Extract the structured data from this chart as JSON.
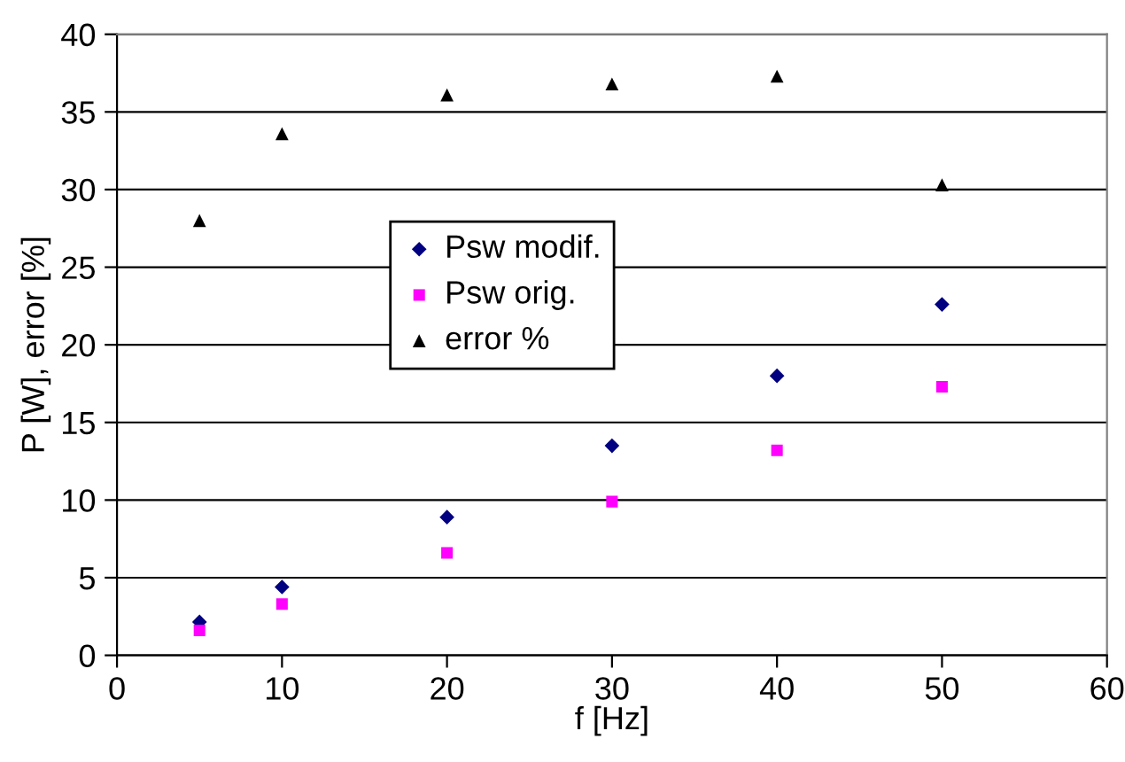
{
  "chart_data": {
    "type": "scatter",
    "xlabel": "f [Hz]",
    "ylabel": "P [W], error [%]",
    "x": [
      5,
      10,
      20,
      30,
      40,
      50
    ],
    "series": [
      {
        "name": "Psw modif.",
        "color": "#000080",
        "marker": "diamond",
        "values": [
          2.15,
          4.4,
          8.9,
          13.5,
          18.0,
          22.6
        ]
      },
      {
        "name": "Psw orig.",
        "color": "#ff00ff",
        "marker": "square",
        "values": [
          1.6,
          3.3,
          6.6,
          9.9,
          13.2,
          17.3
        ]
      },
      {
        "name": "error %",
        "color": "#000000",
        "marker": "triangle",
        "values": [
          28.0,
          33.6,
          36.1,
          36.8,
          37.3,
          30.3
        ]
      }
    ],
    "xlim": [
      0,
      60
    ],
    "xticks": [
      0,
      10,
      20,
      30,
      40,
      50,
      60
    ],
    "ylim": [
      0,
      40
    ],
    "yticks": [
      0,
      5,
      10,
      15,
      20,
      25,
      30,
      35,
      40
    ],
    "grid": "y",
    "legend": "center"
  }
}
